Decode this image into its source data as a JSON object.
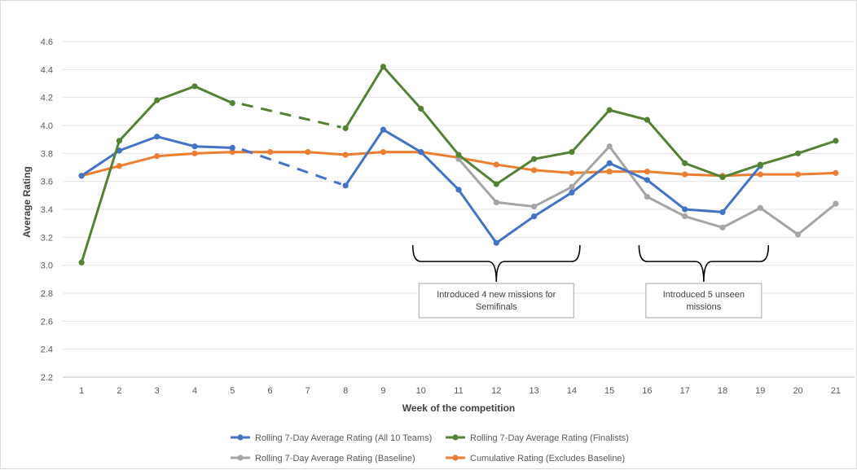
{
  "chart_data": {
    "type": "line",
    "title": "",
    "xlabel": "Week of the competition",
    "ylabel": "Average Rating",
    "categories": [
      "1",
      "2",
      "3",
      "4",
      "5",
      "6",
      "7",
      "8",
      "9",
      "10",
      "11",
      "12",
      "13",
      "14",
      "15",
      "16",
      "17",
      "18",
      "19",
      "20",
      "21"
    ],
    "ylim": [
      2.2,
      4.6
    ],
    "yticks": [
      "2.2",
      "2.4",
      "2.6",
      "2.8",
      "3.0",
      "3.2",
      "3.4",
      "3.6",
      "3.8",
      "4.0",
      "4.2",
      "4.4",
      "4.6"
    ],
    "grid": true,
    "legend_position": "bottom",
    "series": [
      {
        "name": "Rolling 7-Day Average Rating (All 10 Teams)",
        "color": "#4472C4",
        "values": [
          3.64,
          3.82,
          3.92,
          3.85,
          3.84,
          null,
          null,
          3.57,
          3.97,
          3.81,
          3.54,
          3.16,
          3.35,
          3.52,
          3.73,
          3.61,
          3.4,
          3.38,
          3.71,
          null,
          null
        ],
        "gap_dashed": [
          [
            5,
            8
          ]
        ]
      },
      {
        "name": "Rolling 7-Day Average Rating (Finalists)",
        "color": "#548235",
        "values": [
          3.02,
          3.89,
          4.18,
          4.28,
          4.16,
          null,
          null,
          3.98,
          4.42,
          4.12,
          3.79,
          3.58,
          3.76,
          3.81,
          4.11,
          4.04,
          3.73,
          3.63,
          3.72,
          3.8,
          3.89
        ],
        "gap_dashed": [
          [
            5,
            8
          ]
        ]
      },
      {
        "name": "Rolling 7-Day Average Rating (Baseline)",
        "color": "#A5A5A5",
        "values": [
          null,
          null,
          null,
          null,
          null,
          null,
          null,
          null,
          null,
          null,
          3.76,
          3.45,
          3.42,
          3.56,
          3.85,
          3.49,
          3.35,
          3.27,
          3.41,
          3.22,
          3.44
        ]
      },
      {
        "name": "Cumulative Rating (Excludes Baseline)",
        "color": "#ED7D31",
        "values": [
          3.64,
          3.71,
          3.78,
          3.8,
          3.81,
          3.81,
          3.81,
          3.79,
          3.81,
          3.81,
          3.77,
          3.72,
          3.68,
          3.66,
          3.67,
          3.67,
          3.65,
          3.64,
          3.65,
          3.65,
          3.66
        ]
      }
    ],
    "annotations": [
      {
        "text_lines": [
          "Introduced 4 new missions for",
          "Semifinals"
        ],
        "from_week": 10,
        "to_week": 14
      },
      {
        "text_lines": [
          "Introduced 5 unseen",
          "missions"
        ],
        "from_week": 16,
        "to_week": 19
      }
    ]
  }
}
